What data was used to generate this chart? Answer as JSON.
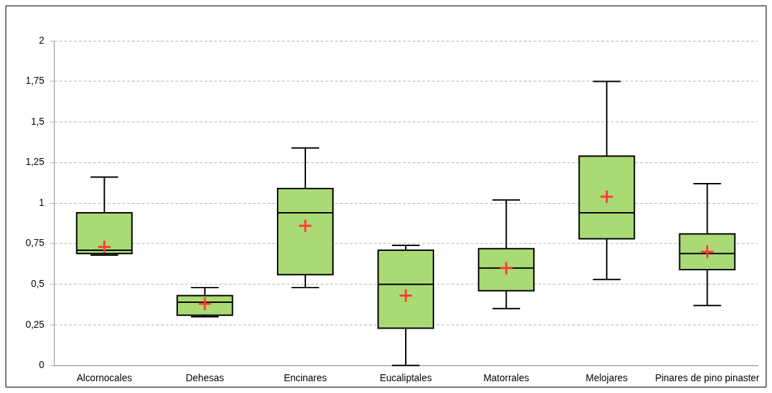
{
  "chart_data": {
    "type": "box",
    "categories": [
      "Alcornocales",
      "Dehesas",
      "Encinares",
      "Eucaliptales",
      "Matorrales",
      "Melojares",
      "Pinares de pino pinaster"
    ],
    "boxes": [
      {
        "low": 0.68,
        "q1": 0.69,
        "median": 0.71,
        "q3": 0.94,
        "high": 1.16,
        "mean": 0.73
      },
      {
        "low": 0.3,
        "q1": 0.31,
        "median": 0.39,
        "q3": 0.43,
        "high": 0.48,
        "mean": 0.38
      },
      {
        "low": 0.48,
        "q1": 0.56,
        "median": 0.94,
        "q3": 1.09,
        "high": 1.34,
        "mean": 0.86
      },
      {
        "low": 0,
        "q1": 0.23,
        "median": 0.5,
        "q3": 0.71,
        "high": 0.74,
        "mean": 0.43
      },
      {
        "low": 0.35,
        "q1": 0.46,
        "median": 0.6,
        "q3": 0.72,
        "high": 1.02,
        "mean": 0.6
      },
      {
        "low": 0.53,
        "q1": 0.78,
        "median": 0.94,
        "q3": 1.29,
        "high": 1.75,
        "mean": 1.04
      },
      {
        "low": 0.37,
        "q1": 0.59,
        "median": 0.69,
        "q3": 0.81,
        "high": 1.12,
        "mean": 0.7
      }
    ],
    "color": "#a9da74",
    "ylim": [
      0,
      2
    ],
    "yticks": [
      0,
      {
        "value": 0.25,
        "label": "0,25"
      },
      {
        "value": 0.5,
        "label": "0,5"
      },
      {
        "value": 0.75,
        "label": "0,75"
      },
      1,
      {
        "value": 1.25,
        "label": "1,25"
      },
      {
        "value": 1.5,
        "label": "1,5"
      },
      {
        "value": 1.75,
        "label": "1,75"
      },
      2
    ],
    "grid": "y",
    "legend": false
  }
}
